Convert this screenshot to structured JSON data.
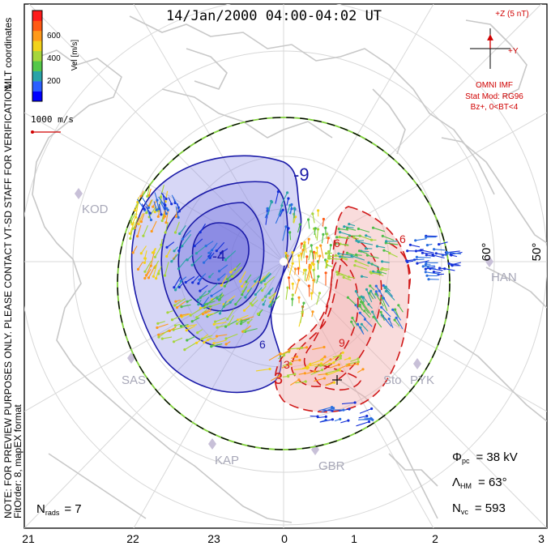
{
  "title": "14/Jan/2000 04:00-04:02 UT",
  "coordinate_system": "MLT coordinates",
  "colorbar": {
    "label": "Vel [m/s]",
    "ticks": [
      "600",
      "400",
      "200"
    ],
    "colors": [
      "#0000ff",
      "#2b5fff",
      "#2aa3a8",
      "#55c84a",
      "#a6d63b",
      "#f2d21a",
      "#ff9a1a",
      "#ff5a14",
      "#ff1a1a"
    ]
  },
  "reference_vector": "1000 m/s",
  "imf_panel": {
    "z_label": "+Z (5 nT)",
    "y_label": "+Y",
    "source": "OMNI IMF",
    "model": "Stat Mod: RG96",
    "condition": "Bz+, 0<BT<4"
  },
  "notes": {
    "preview": "NOTE: FOR PREVIEW PURPOSES ONLY. PLEASE CONTACT VT-SD STAFF FOR VERIFICATION.",
    "fit": "FitOrder: 8, mapEX format"
  },
  "stats": {
    "nrads_label": "N",
    "nrads_sub": "rads",
    "nrads_value": "= 7",
    "phi_label": "Φ",
    "phi_sub": "pc",
    "phi_value": "= 38 kV",
    "lambda_label": "Λ",
    "lambda_sub": "HM",
    "lambda_value": "= 63°",
    "nvc_label": "N",
    "nvc_sub": "vc",
    "nvc_value": "= 593"
  },
  "mlt_ticks": [
    "21",
    "22",
    "23",
    "0",
    "1",
    "2",
    "3"
  ],
  "latitude_labels": [
    "60°",
    "50°"
  ],
  "contour_labels": [
    "-9",
    "-4",
    "3",
    "6",
    "6",
    "9",
    "6",
    "3"
  ],
  "radars": [
    "KOD",
    "SAS",
    "KAP",
    "GBR",
    "Sto",
    "PYK",
    "HAN"
  ],
  "colors": {
    "negative_potential": "#1a1aa8",
    "positive_potential": "#d01818",
    "negative_fill": "#8c8ce6",
    "positive_fill": "#f0a8a8",
    "boundary": "#7fd03a",
    "coast": "#c8c8c8",
    "grid": "#d8d8d8"
  }
}
